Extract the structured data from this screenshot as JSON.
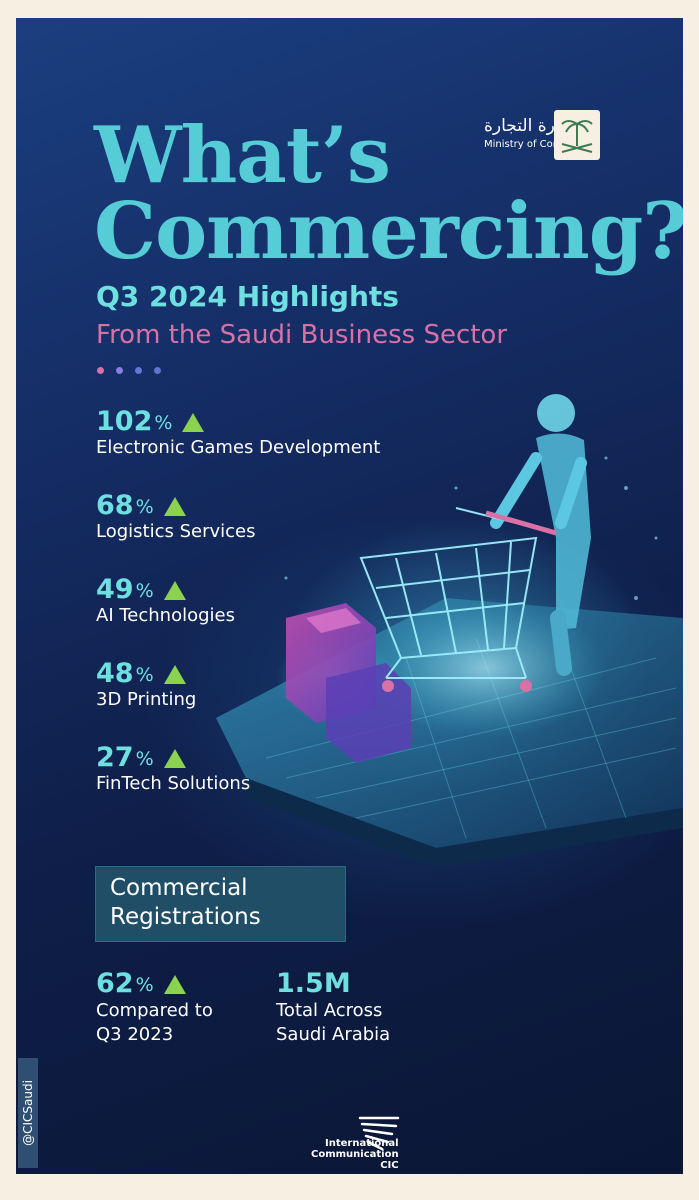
{
  "header": {
    "title_line1": "What’s",
    "title_line2": "Commercing?",
    "subtitle": "Q3 2024 Highlights",
    "subtitle2": "From the Saudi Business Sector"
  },
  "ministry": {
    "name_ar": "وزارة التجارة",
    "name_en": "Ministry of Commerce"
  },
  "highlights": [
    {
      "value": "102",
      "unit": "%",
      "label": "Electronic Games Development"
    },
    {
      "value": "68",
      "unit": "%",
      "label": "Logistics Services"
    },
    {
      "value": "49",
      "unit": "%",
      "label": "AI Technologies"
    },
    {
      "value": "48",
      "unit": "%",
      "label": "3D Printing"
    },
    {
      "value": "27",
      "unit": "%",
      "label": "FinTech Solutions"
    }
  ],
  "registrations": {
    "title_line1": "Commercial",
    "title_line2": "Registrations",
    "growth_value": "62",
    "growth_unit": "%",
    "growth_label_line1": "Compared to",
    "growth_label_line2": "Q3 2023",
    "total_value": "1.5M",
    "total_label_line1": "Total Across",
    "total_label_line2": "Saudi Arabia"
  },
  "footer": {
    "handle": "@CICSaudi",
    "org_line1": "International",
    "org_line2": "Communication",
    "org_line3": "CIC"
  },
  "colors": {
    "accent": "#56cdd6",
    "pink": "#d971a7",
    "up_arrow": "#8bd34f"
  }
}
